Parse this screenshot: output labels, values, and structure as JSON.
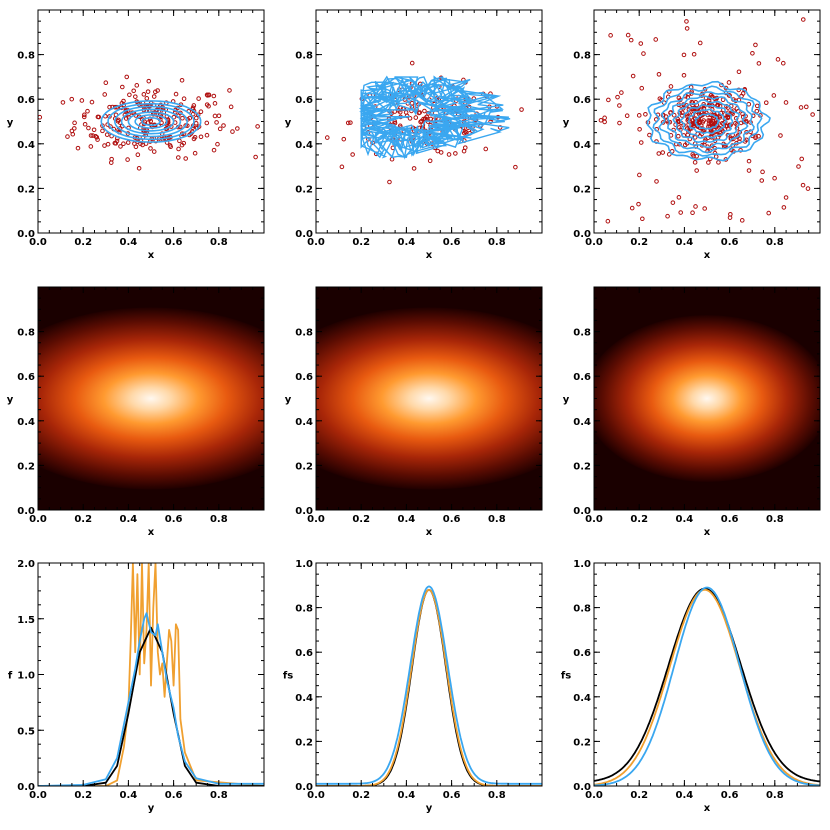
{
  "colors": {
    "scatter_points": "#b01010",
    "contour": "#3aa7f0",
    "curve_exact": "#000000",
    "curve_orange": "#f0a030",
    "curve_blue": "#3aa7f0",
    "heat_dark": "#1a0000",
    "heat_mid": "#e06010",
    "heat_light": "#fff8f0"
  },
  "chart_data": [
    {
      "type": "scatter",
      "panel": "top-left",
      "xlabel": "x",
      "ylabel": "y",
      "xlim": [
        0,
        1
      ],
      "ylim": [
        0,
        1
      ],
      "xticks": [
        "0.0",
        "0.2",
        "0.4",
        "0.6",
        "0.8"
      ],
      "yticks": [
        "0.0",
        "0.2",
        "0.4",
        "0.6",
        "0.8"
      ],
      "points": {
        "center": [
          0.5,
          0.5
        ],
        "sigma": [
          0.17,
          0.08
        ],
        "count": 260
      },
      "contours": {
        "style": "smooth-ellipses",
        "radii_x": [
          0.04,
          0.07,
          0.1,
          0.13,
          0.16,
          0.19,
          0.22
        ],
        "ratio": 0.42
      }
    },
    {
      "type": "scatter",
      "panel": "top-middle",
      "xlabel": "x",
      "ylabel": "y",
      "xlim": [
        0,
        1
      ],
      "ylim": [
        0,
        1
      ],
      "xticks": [
        "0.0",
        "0.2",
        "0.4",
        "0.6",
        "0.8"
      ],
      "yticks": [
        "0.0",
        "0.2",
        "0.4",
        "0.6",
        "0.8"
      ],
      "points": {
        "center": [
          0.5,
          0.5
        ],
        "sigma": [
          0.17,
          0.08
        ],
        "count": 200
      },
      "contours": {
        "style": "jagged-mesh",
        "extent_x": [
          0.2,
          0.9
        ],
        "extent_y": [
          0.34,
          0.7
        ]
      }
    },
    {
      "type": "scatter",
      "panel": "top-right",
      "xlabel": "x",
      "ylabel": "y",
      "xlim": [
        0,
        1
      ],
      "ylim": [
        0,
        1
      ],
      "xticks": [
        "0.0",
        "0.2",
        "0.4",
        "0.6",
        "0.8"
      ],
      "yticks": [
        "0.0",
        "0.2",
        "0.4",
        "0.6",
        "0.8"
      ],
      "points": {
        "center": [
          0.5,
          0.5
        ],
        "sigma": [
          0.1,
          0.07
        ],
        "count": 300,
        "scatter_extra": 90
      },
      "contours": {
        "style": "wavy-ellipses",
        "radii_x": [
          0.05,
          0.08,
          0.11,
          0.14,
          0.17,
          0.2,
          0.23,
          0.26
        ],
        "ratio": 0.65
      }
    },
    {
      "type": "heatmap",
      "panel": "middle-left",
      "xlabel": "x",
      "ylabel": "y",
      "xlim": [
        0,
        1
      ],
      "ylim": [
        0,
        1
      ],
      "xticks": [
        "0.0",
        "0.2",
        "0.4",
        "0.6",
        "0.8"
      ],
      "yticks": [
        "0.0",
        "0.2",
        "0.4",
        "0.6",
        "0.8"
      ],
      "center": [
        0.5,
        0.5
      ],
      "sigma": [
        0.22,
        0.12
      ]
    },
    {
      "type": "heatmap",
      "panel": "middle-middle",
      "xlabel": "x",
      "ylabel": "y",
      "xlim": [
        0,
        1
      ],
      "ylim": [
        0,
        1
      ],
      "xticks": [
        "0.0",
        "0.2",
        "0.4",
        "0.6",
        "0.8"
      ],
      "yticks": [
        "0.0",
        "0.2",
        "0.4",
        "0.6",
        "0.8"
      ],
      "center": [
        0.5,
        0.5
      ],
      "sigma": [
        0.22,
        0.12
      ]
    },
    {
      "type": "heatmap",
      "panel": "middle-right",
      "xlabel": "x",
      "ylabel": "y",
      "xlim": [
        0,
        1
      ],
      "ylim": [
        0,
        1
      ],
      "xticks": [
        "0.0",
        "0.2",
        "0.4",
        "0.6",
        "0.8"
      ],
      "yticks": [
        "0.0",
        "0.2",
        "0.4",
        "0.6",
        "0.8"
      ],
      "center": [
        0.5,
        0.5
      ],
      "sigma": [
        0.16,
        0.11
      ]
    },
    {
      "type": "line",
      "panel": "bottom-left",
      "xlabel": "y",
      "ylabel": "f",
      "xlim": [
        0,
        1
      ],
      "ylim": [
        0,
        2
      ],
      "xticks": [
        "0.0",
        "0.2",
        "0.4",
        "0.6",
        "0.8"
      ],
      "yticks": [
        "0.0",
        "0.5",
        "1.0",
        "1.5",
        "2.0"
      ],
      "series": [
        {
          "color": "orange",
          "x": [
            0.0,
            0.3,
            0.35,
            0.38,
            0.4,
            0.41,
            0.42,
            0.43,
            0.44,
            0.45,
            0.46,
            0.47,
            0.48,
            0.49,
            0.5,
            0.51,
            0.52,
            0.53,
            0.54,
            0.55,
            0.56,
            0.57,
            0.58,
            0.59,
            0.6,
            0.61,
            0.62,
            0.63,
            0.65,
            0.7,
            1.0
          ],
          "y": [
            0.0,
            0.0,
            0.05,
            0.35,
            0.7,
            1.3,
            2.0,
            1.2,
            1.9,
            1.0,
            2.0,
            1.1,
            1.4,
            2.0,
            0.9,
            1.6,
            2.0,
            1.2,
            1.0,
            1.1,
            0.8,
            1.1,
            1.4,
            1.3,
            0.9,
            1.45,
            1.4,
            0.6,
            0.3,
            0.05,
            0.0
          ]
        },
        {
          "color": "black",
          "x": [
            0.0,
            0.2,
            0.3,
            0.35,
            0.4,
            0.45,
            0.5,
            0.55,
            0.6,
            0.65,
            0.7,
            0.8,
            1.0
          ],
          "y": [
            0.0,
            0.0,
            0.03,
            0.18,
            0.65,
            1.2,
            1.42,
            1.2,
            0.65,
            0.18,
            0.03,
            0.0,
            0.0
          ]
        },
        {
          "color": "blue",
          "x": [
            0.0,
            0.2,
            0.3,
            0.35,
            0.4,
            0.43,
            0.45,
            0.47,
            0.48,
            0.5,
            0.52,
            0.53,
            0.55,
            0.57,
            0.6,
            0.62,
            0.65,
            0.7,
            0.8,
            1.0
          ],
          "y": [
            0.0,
            0.01,
            0.06,
            0.25,
            0.75,
            1.05,
            1.3,
            1.5,
            1.55,
            1.38,
            1.35,
            1.45,
            1.2,
            0.95,
            0.7,
            0.45,
            0.22,
            0.07,
            0.02,
            0.02
          ]
        }
      ]
    },
    {
      "type": "line",
      "panel": "bottom-middle",
      "xlabel": "y",
      "ylabel": "fs",
      "xlim": [
        0,
        1
      ],
      "ylim": [
        0,
        1
      ],
      "xticks": [
        "0.0",
        "0.2",
        "0.4",
        "0.6",
        "0.8"
      ],
      "yticks": [
        "0.0",
        "0.2",
        "0.4",
        "0.6",
        "0.8",
        "1.0"
      ],
      "series": [
        {
          "color": "black",
          "gauss": [
            0.5,
            0.075,
            0.88,
            0.0
          ]
        },
        {
          "color": "orange",
          "gauss": [
            0.5,
            0.077,
            0.88,
            0.0
          ]
        },
        {
          "color": "blue",
          "gauss": [
            0.5,
            0.082,
            0.885,
            0.01
          ]
        }
      ]
    },
    {
      "type": "line",
      "panel": "bottom-right",
      "xlabel": "x",
      "ylabel": "fs",
      "xlim": [
        0,
        1
      ],
      "ylim": [
        0,
        1
      ],
      "xticks": [
        "0.0",
        "0.2",
        "0.4",
        "0.6",
        "0.8"
      ],
      "yticks": [
        "0.0",
        "0.2",
        "0.4",
        "0.6",
        "0.8",
        "1.0"
      ],
      "series": [
        {
          "color": "black",
          "gauss": [
            0.49,
            0.16,
            0.87,
            0.015
          ]
        },
        {
          "color": "orange",
          "gauss": [
            0.49,
            0.155,
            0.88,
            0.0
          ]
        },
        {
          "color": "blue",
          "gauss": [
            0.5,
            0.145,
            0.89,
            0.0
          ]
        }
      ]
    }
  ]
}
